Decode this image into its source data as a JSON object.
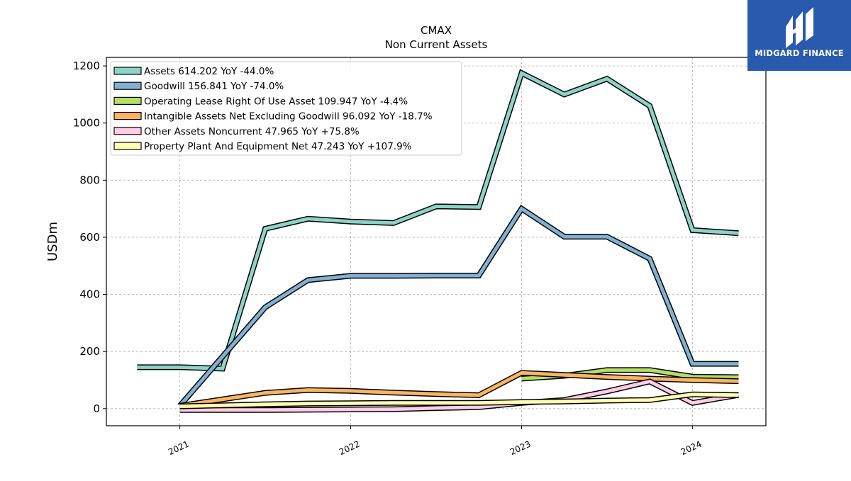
{
  "chart_data": {
    "type": "line",
    "title": "CMAX",
    "subtitle": "Non Current  Assets",
    "ylabel": "USDm",
    "xlabel": "",
    "ylim": [
      -60,
      1230
    ],
    "yticks": [
      0,
      200,
      400,
      600,
      800,
      1000,
      1200
    ],
    "xlim": [
      2020.57,
      2024.43
    ],
    "xticks": [
      {
        "value": 2021,
        "label": "2021"
      },
      {
        "value": 2022,
        "label": "2022"
      },
      {
        "value": 2023,
        "label": "2023"
      },
      {
        "value": 2024,
        "label": "2024"
      }
    ],
    "grid": true,
    "legend_position": "top-left",
    "series": [
      {
        "name": "Assets",
        "legend": "Assets  614.202 YoY -44.0%",
        "color": "#8dd3c7",
        "points": [
          [
            2020.75,
            145
          ],
          [
            2021.0,
            145
          ],
          [
            2021.25,
            140
          ],
          [
            2021.5,
            630
          ],
          [
            2021.75,
            665
          ],
          [
            2022.0,
            655
          ],
          [
            2022.25,
            650
          ],
          [
            2022.5,
            708
          ],
          [
            2022.75,
            706
          ],
          [
            2023.0,
            1175
          ],
          [
            2023.25,
            1100
          ],
          [
            2023.5,
            1155
          ],
          [
            2023.75,
            1060
          ],
          [
            2024.0,
            625
          ],
          [
            2024.27,
            614.202
          ]
        ]
      },
      {
        "name": "Goodwill",
        "legend": "Goodwill  156.841 YoY -74.0%",
        "color": "#80b1d3",
        "points": [
          [
            2021.0,
            10
          ],
          [
            2021.5,
            355
          ],
          [
            2021.75,
            450
          ],
          [
            2022.0,
            465
          ],
          [
            2022.25,
            465
          ],
          [
            2022.5,
            466
          ],
          [
            2022.75,
            466
          ],
          [
            2023.0,
            700
          ],
          [
            2023.25,
            602
          ],
          [
            2023.5,
            602
          ],
          [
            2023.75,
            525
          ],
          [
            2024.0,
            156.841
          ],
          [
            2024.27,
            156.841
          ]
        ]
      },
      {
        "name": "Operating Lease Right Of Use Asset",
        "legend": "Operating Lease Right Of Use Asset  109.947 YoY -4.4%",
        "color": "#b3de69",
        "points": [
          [
            2023.0,
            105
          ],
          [
            2023.25,
            115
          ],
          [
            2023.5,
            135
          ],
          [
            2023.75,
            135
          ],
          [
            2024.0,
            112
          ],
          [
            2024.27,
            109.947
          ]
        ]
      },
      {
        "name": "Intangible Assets Net Excluding Goodwill",
        "legend": "Intangible Assets Net Excluding Goodwill  96.092 YoY -18.7%",
        "color": "#fdb462",
        "points": [
          [
            2021.0,
            10
          ],
          [
            2021.5,
            55
          ],
          [
            2021.75,
            65
          ],
          [
            2022.0,
            62
          ],
          [
            2022.25,
            56
          ],
          [
            2022.5,
            51
          ],
          [
            2022.75,
            47
          ],
          [
            2023.0,
            125
          ],
          [
            2023.25,
            118
          ],
          [
            2023.5,
            111
          ],
          [
            2023.75,
            105
          ],
          [
            2024.0,
            100
          ],
          [
            2024.27,
            96.092
          ]
        ]
      },
      {
        "name": "Other Assets Noncurrent",
        "legend": "Other Assets Noncurrent  47.965 YoY +75.8%",
        "color": "#fccde5",
        "points": [
          [
            2021.0,
            -5
          ],
          [
            2021.5,
            -5
          ],
          [
            2021.75,
            -4
          ],
          [
            2022.0,
            -3
          ],
          [
            2022.25,
            -2
          ],
          [
            2022.5,
            2
          ],
          [
            2022.75,
            5
          ],
          [
            2023.0,
            20
          ],
          [
            2023.25,
            30
          ],
          [
            2023.5,
            60
          ],
          [
            2023.75,
            95
          ],
          [
            2024.0,
            20
          ],
          [
            2024.27,
            47.965
          ]
        ]
      },
      {
        "name": "Property Plant And Equipment Net",
        "legend": "Property Plant And Equipment Net  47.243 YoY +107.9%",
        "color": "#ffffb3",
        "points": [
          [
            2021.0,
            8
          ],
          [
            2021.5,
            15
          ],
          [
            2021.75,
            18
          ],
          [
            2022.0,
            19
          ],
          [
            2022.25,
            20
          ],
          [
            2022.5,
            20
          ],
          [
            2022.75,
            20
          ],
          [
            2023.0,
            23
          ],
          [
            2023.25,
            25
          ],
          [
            2023.5,
            28
          ],
          [
            2023.75,
            30
          ],
          [
            2024.0,
            50
          ],
          [
            2024.27,
            47.243
          ]
        ]
      }
    ]
  },
  "logo": {
    "text": "MIDGARD FINANCE",
    "color": "#2a5aad"
  }
}
